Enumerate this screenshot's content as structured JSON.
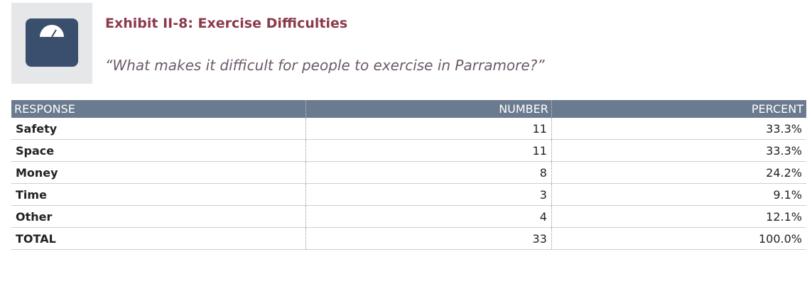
{
  "header": {
    "title": "Exhibit II-8: Exercise Difficulties",
    "subtitle": "“What makes it difficult for people to exercise in Parramore?”"
  },
  "table": {
    "columns": [
      "RESPONSE",
      "NUMBER",
      "PERCENT"
    ],
    "rows": [
      [
        "Safety",
        "11",
        "33.3%"
      ],
      [
        "Space",
        "11",
        "33.3%"
      ],
      [
        "Money",
        "8",
        "24.2%"
      ],
      [
        "Time",
        "3",
        "9.1%"
      ],
      [
        "Other",
        "4",
        "12.1%"
      ],
      [
        "TOTAL",
        "33",
        "100.0%"
      ]
    ]
  }
}
